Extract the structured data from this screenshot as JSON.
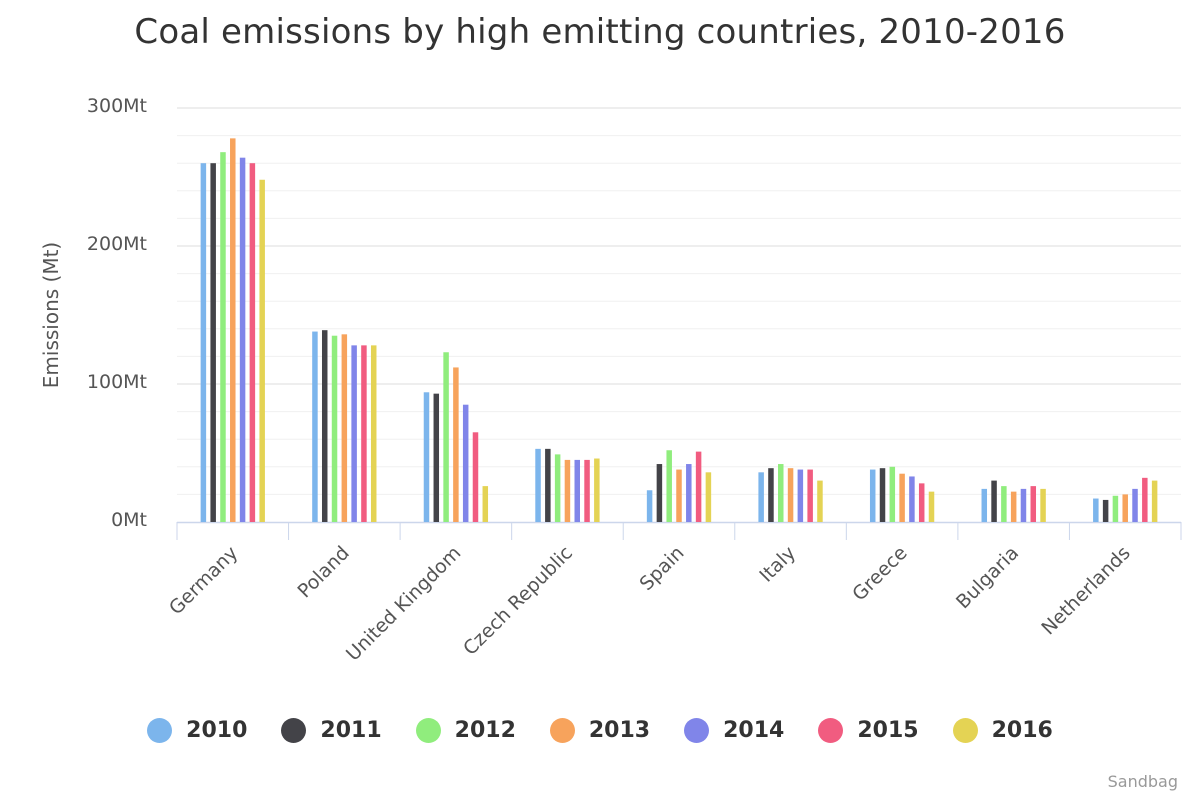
{
  "chart_data": {
    "type": "bar",
    "title": "Coal emissions by high emitting countries, 2010-2016",
    "ylabel": "Emissions (Mt)",
    "xlabel": "",
    "ylim": [
      0,
      300
    ],
    "ytick_values": [
      0,
      100,
      200,
      300
    ],
    "ytick_labels": [
      "0Mt",
      "100Mt",
      "200Mt",
      "300Mt"
    ],
    "minor_grid_step": 20,
    "categories": [
      "Germany",
      "Poland",
      "United Kingdom",
      "Czech Republic",
      "Spain",
      "Italy",
      "Greece",
      "Bulgaria",
      "Netherlands"
    ],
    "series": [
      {
        "name": "2010",
        "color": "#7cb5ec",
        "values": [
          260,
          138,
          94,
          53,
          23,
          36,
          38,
          24,
          17
        ]
      },
      {
        "name": "2011",
        "color": "#434348",
        "values": [
          260,
          139,
          93,
          53,
          42,
          39,
          39,
          30,
          16
        ]
      },
      {
        "name": "2012",
        "color": "#90ed7d",
        "values": [
          268,
          135,
          123,
          49,
          52,
          42,
          40,
          26,
          19
        ]
      },
      {
        "name": "2013",
        "color": "#f7a35c",
        "values": [
          278,
          136,
          112,
          45,
          38,
          39,
          35,
          22,
          20
        ]
      },
      {
        "name": "2014",
        "color": "#8085e9",
        "values": [
          264,
          128,
          85,
          45,
          42,
          38,
          33,
          24,
          24
        ]
      },
      {
        "name": "2015",
        "color": "#f15c80",
        "values": [
          260,
          128,
          65,
          45,
          51,
          38,
          28,
          26,
          32
        ]
      },
      {
        "name": "2016",
        "color": "#e4d354",
        "values": [
          248,
          128,
          26,
          46,
          36,
          30,
          22,
          24,
          30
        ]
      }
    ],
    "legend_position": "bottom-center",
    "grid": true
  },
  "credit": "Sandbag"
}
